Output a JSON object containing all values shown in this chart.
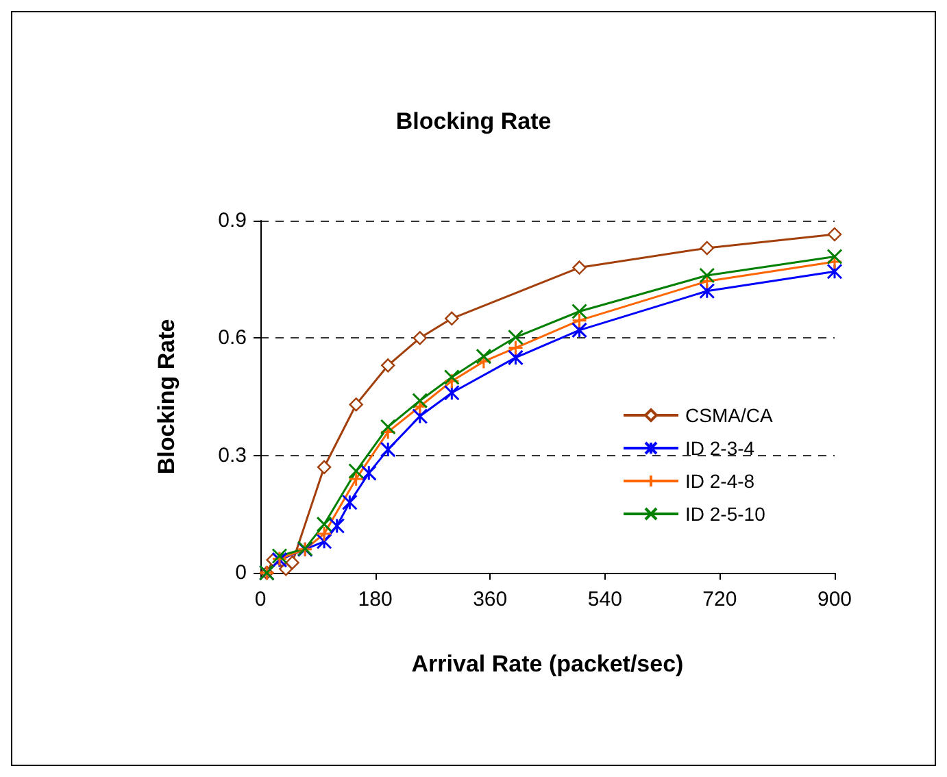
{
  "chart_data": {
    "type": "line",
    "title": "Blocking Rate",
    "xlabel": "Arrival Rate (packet/sec)",
    "ylabel": "Blocking Rate",
    "xlim": [
      0,
      900
    ],
    "xticks": [
      0,
      180,
      360,
      540,
      720,
      900
    ],
    "ylim": [
      0,
      0.9
    ],
    "yticks": [
      0,
      0.3,
      0.6,
      0.9
    ],
    "grid": "y",
    "legend": "right",
    "series": [
      {
        "name": "CSMA/CA",
        "color": "#a33f0a",
        "marker": "diamond",
        "x": [
          10,
          20,
          40,
          50,
          100,
          150,
          200,
          250,
          300,
          500,
          700,
          900
        ],
        "values": [
          0,
          0.033,
          0.01,
          0.026,
          0.27,
          0.43,
          0.53,
          0.6,
          0.65,
          0.78,
          0.83,
          0.865
        ]
      },
      {
        "name": "ID 2-3-4",
        "color": "#0000ff",
        "marker": "cross",
        "x": [
          10,
          30,
          70,
          100,
          120,
          140,
          170,
          200,
          250,
          300,
          400,
          500,
          700,
          900
        ],
        "values": [
          0,
          0.033,
          0.06,
          0.08,
          0.12,
          0.18,
          0.255,
          0.315,
          0.4,
          0.46,
          0.55,
          0.62,
          0.72,
          0.77
        ]
      },
      {
        "name": "ID 2-4-8",
        "color": "#ff6600",
        "marker": "cross",
        "x": [
          10,
          30,
          70,
          100,
          150,
          200,
          250,
          300,
          350,
          400,
          500,
          700,
          900
        ],
        "values": [
          0,
          0.036,
          0.06,
          0.1,
          0.24,
          0.36,
          0.425,
          0.49,
          0.54,
          0.575,
          0.645,
          0.745,
          0.795
        ]
      },
      {
        "name": "ID 2-5-10",
        "color": "#008000",
        "marker": "cross",
        "x": [
          10,
          30,
          70,
          100,
          150,
          200,
          250,
          300,
          350,
          400,
          500,
          700,
          900
        ],
        "values": [
          0,
          0.043,
          0.062,
          0.124,
          0.26,
          0.373,
          0.44,
          0.5,
          0.553,
          0.602,
          0.668,
          0.76,
          0.808
        ]
      }
    ]
  }
}
